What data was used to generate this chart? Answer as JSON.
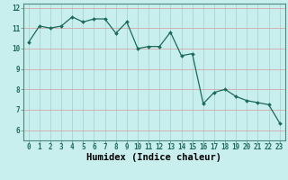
{
  "x": [
    0,
    1,
    2,
    3,
    4,
    5,
    6,
    7,
    8,
    9,
    10,
    11,
    12,
    13,
    14,
    15,
    16,
    17,
    18,
    19,
    20,
    21,
    22,
    23
  ],
  "y": [
    10.3,
    11.1,
    11.0,
    11.1,
    11.55,
    11.3,
    11.45,
    11.45,
    10.75,
    11.3,
    10.0,
    10.1,
    10.1,
    10.8,
    9.65,
    9.75,
    7.3,
    7.85,
    8.0,
    7.65,
    7.45,
    7.35,
    7.25,
    6.35
  ],
  "xlabel": "Humidex (Indice chaleur)",
  "ylabel": "",
  "xlim": [
    -0.5,
    23.5
  ],
  "ylim": [
    5.5,
    12.2
  ],
  "yticks": [
    6,
    7,
    8,
    9,
    10,
    11,
    12
  ],
  "xticks": [
    0,
    1,
    2,
    3,
    4,
    5,
    6,
    7,
    8,
    9,
    10,
    11,
    12,
    13,
    14,
    15,
    16,
    17,
    18,
    19,
    20,
    21,
    22,
    23
  ],
  "line_color": "#1a6b5a",
  "marker_color": "#1a6b5a",
  "bg_color": "#c8eeee",
  "grid_h_color": "#d4a8a8",
  "grid_v_color": "#a8d4d4",
  "xlabel_fontsize": 7.5,
  "tick_fontsize": 5.5
}
